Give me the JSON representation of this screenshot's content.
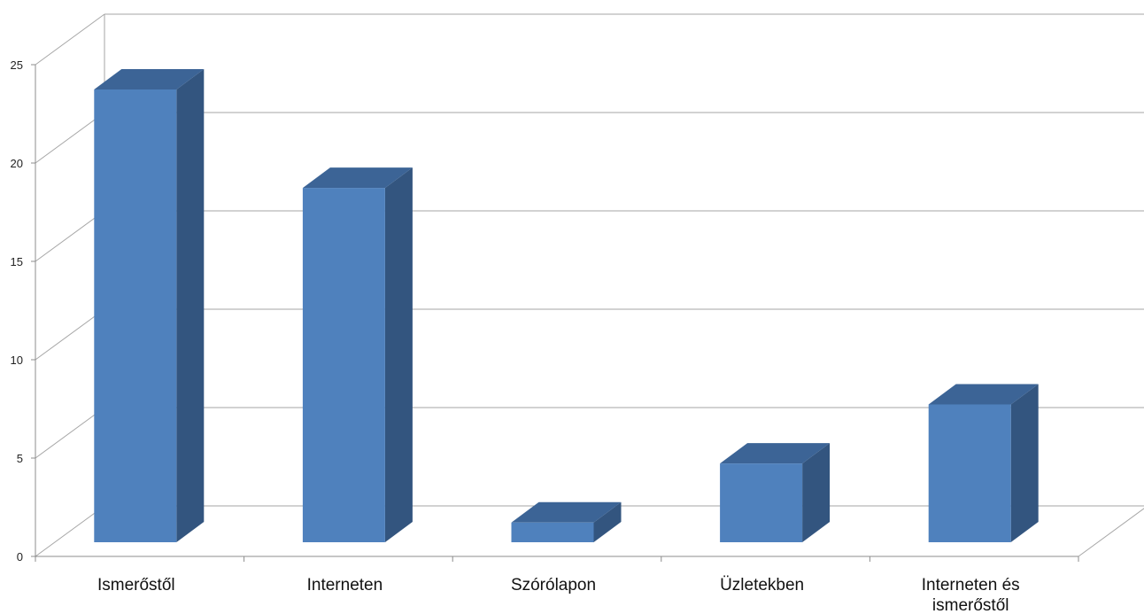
{
  "chart_data": {
    "type": "bar",
    "style": "3d-column",
    "categories": [
      "Ismerőstől",
      "Interneten",
      "Szórólapon",
      "Üzletekben",
      "Interneten és ismerőstől"
    ],
    "values": [
      23,
      18,
      1,
      4,
      7
    ],
    "title": "",
    "xlabel": "",
    "ylabel": "",
    "ylim": [
      0,
      25
    ],
    "yticks": [
      "0",
      "5",
      "10",
      "15",
      "20",
      "25"
    ],
    "grid": true,
    "legend": "none",
    "colors": {
      "bar_front": "#4F81BD",
      "bar_side": "#33557F",
      "bar_top": "#3C6496",
      "grid": "#A6A6A6",
      "axis": "#8C8C8C"
    }
  }
}
